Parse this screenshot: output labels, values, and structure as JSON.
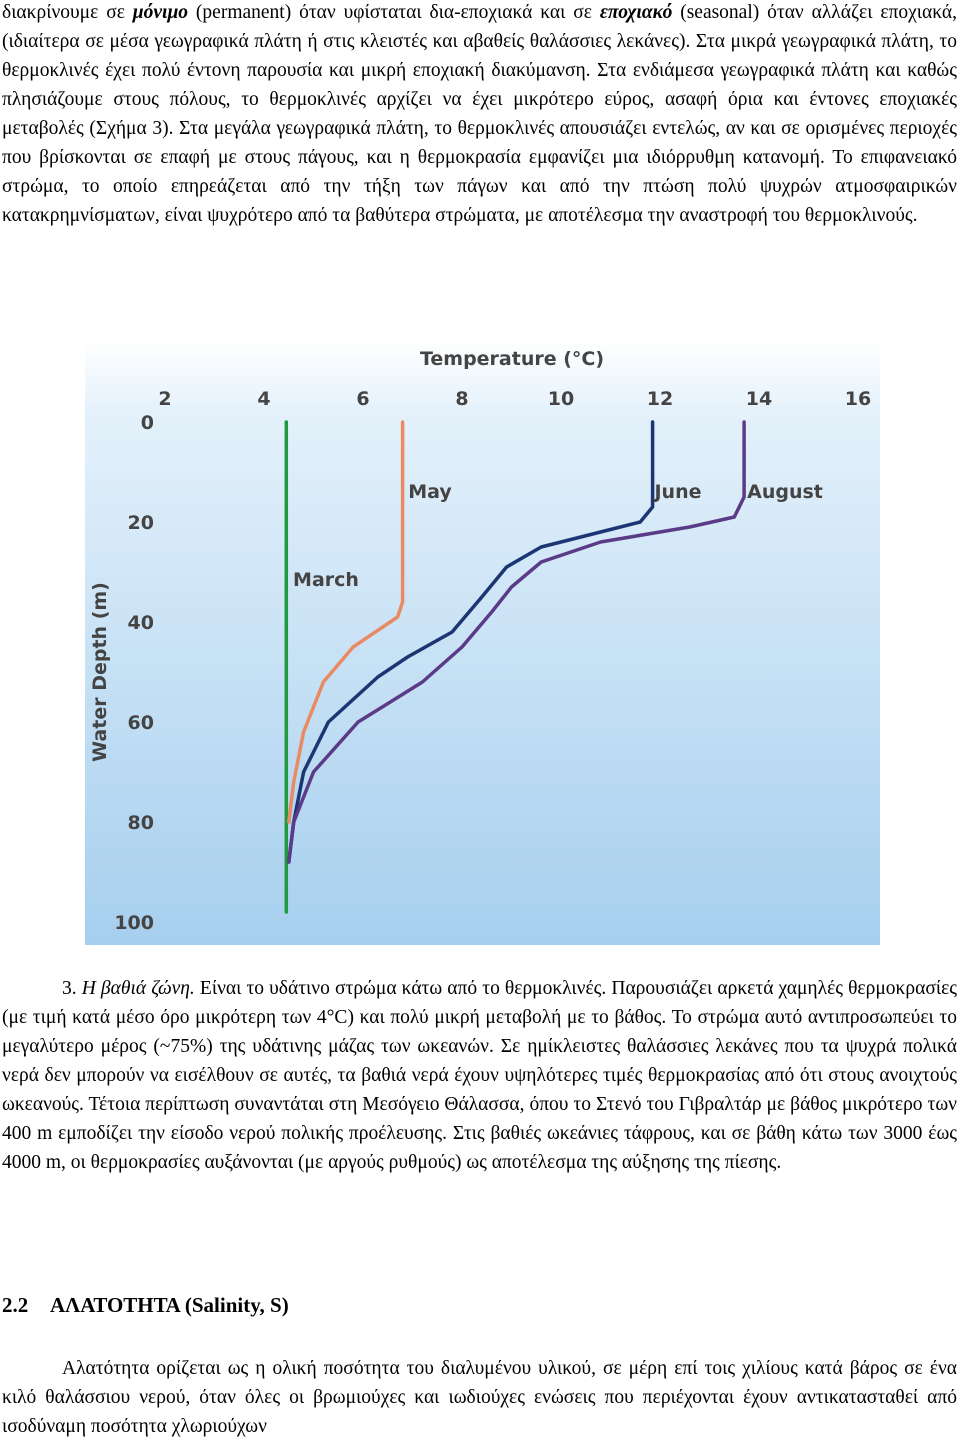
{
  "text_top": {
    "runs": [
      "διακρίνουμε σε ",
      "μόνιμο",
      " (permanent) όταν υφίσταται δια-εποχιακά και σε ",
      "εποχιακό",
      " (seasonal) όταν αλλάζει εποχιακά, (ιδιαίτερα σε μέσα γεωγραφικά πλάτη ή στις κλειστές και αβαθείς θαλάσσιες λεκάνες). Στα μικρά γεωγραφικά πλάτη, το θερμοκλινές έχει πολύ έντονη παρουσία και μικρή εποχιακή διακύμανση. Στα ενδιάμεσα γεωγραφικά πλάτη και καθώς πλησιάζουμε στους πόλους, το θερμοκλινές αρχίζει να έχει μικρότερο εύρος, ασαφή όρια και έντονες εποχιακές μεταβολές (Σχήμα 3). Στα μεγάλα γεωγραφικά πλάτη, το θερμοκλινές απουσιάζει εντελώς, αν και σε ορισμένες περιοχές που βρίσκονται σε επαφή με στους πάγους, και η θερμοκρασία εμφανίζει μια ιδιόρρυθμη κατανομή. Το επιφανειακό στρώμα, το οποίο επηρεάζεται από την τήξη των πάγων και από την πτώση πολύ ψυχρών ατμοσφαιρικών κατακρημνίσματων, είναι ψυχρότερο από τα βαθύτερα στρώματα, με αποτέλεσμα την αναστροφή του θερμοκλινούς."
    ]
  },
  "chart_data": {
    "type": "line",
    "title": "Temperature (°C)",
    "y_label": "Water Depth (m)",
    "xlim": [
      2,
      16
    ],
    "ylim": [
      0,
      100
    ],
    "y_inverted": true,
    "x_axis_position": "top",
    "xticks": [
      2,
      4,
      6,
      8,
      10,
      12,
      14,
      16
    ],
    "yticks": [
      0,
      20,
      40,
      60,
      80,
      100
    ],
    "series": [
      {
        "name": "March",
        "color": "#1f9a3e",
        "x": [
          4.45,
          4.45,
          4.45,
          4.45
        ],
        "values": [
          0,
          40,
          80,
          98
        ]
      },
      {
        "name": "May",
        "color": "#e98a62",
        "x": [
          6.8,
          6.8,
          6.7,
          6.4,
          5.8,
          5.2,
          4.8,
          4.6,
          4.5
        ],
        "values": [
          0,
          36,
          39,
          41,
          45,
          52,
          62,
          72,
          80
        ]
      },
      {
        "name": "June",
        "color": "#1c3673",
        "x": [
          11.85,
          11.85,
          11.6,
          10.8,
          9.6,
          8.9,
          8.4,
          7.8,
          6.9,
          6.3,
          5.3,
          4.8,
          4.6,
          4.5
        ],
        "values": [
          0,
          17,
          20,
          22,
          25,
          29,
          35,
          42,
          47,
          51,
          60,
          70,
          80,
          88
        ]
      },
      {
        "name": "August",
        "color": "#5b3b88",
        "x": [
          13.7,
          13.7,
          13.5,
          12.6,
          10.8,
          9.6,
          9.0,
          8.6,
          8.0,
          7.2,
          5.9,
          5.0,
          4.6,
          4.5
        ],
        "values": [
          0,
          15,
          19,
          21,
          24,
          28,
          33,
          38,
          45,
          52,
          60,
          70,
          80,
          88
        ]
      }
    ]
  },
  "text_bottom": {
    "runs": [
      "3. ",
      "Η βαθιά ζώνη.",
      " Είναι το υδάτινο στρώμα κάτω από το θερμοκλινές. Παρουσιάζει αρκετά χαμηλές θερμοκρασίες (με τιμή κατά μέσο όρο μικρότερη των 4°C) και πολύ μικρή μεταβολή με το βάθος. Το στρώμα αυτό αντιπροσωπεύει το μεγαλύτερο μέρος (~75%) της υδάτινης μάζας των ωκεανών. Σε ημίκλειστες θαλάσσιες λεκάνες που τα ψυχρά πολικά νερά δεν μπορούν να εισέλθουν σε αυτές, τα βαθιά νερά έχουν υψηλότερες τιμές θερμοκρασίας από ότι στους ανοιχτούς ωκεανούς. Τέτοια περίπτωση συναντάται στη Μεσόγειο Θάλασσα, όπου το Στενό του Γιβραλτάρ με βάθος μικρότερο των 400 m εμποδίζει την είσοδο νερού πολικής προέλευσης. Στις βαθιές ωκεάνιες τάφρους, και σε βάθη κάτω των 3000 έως 4000 m, οι θερμοκρασίες αυξάνονται (με αργούς ρυθμούς) ως αποτέλεσμα της αύξησης της πίεσης."
    ]
  },
  "heading": {
    "number": "2.2",
    "title": "ΑΛΑΤΟΤΗΤΑ (Salinity, S)"
  },
  "paragraph_last": "Αλατότητα ορίζεται ως η ολική ποσότητα του διαλυμένου υλικού, σε μέρη επί τοις χιλίους κατά βάρος σε ένα κιλό θαλάσσιου νερού, όταν όλες οι βρωμιούχες και ιωδιούχες ενώσεις που περιέχονται έχουν αντικατασταθεί από ισοδύναμη ποσότητα χλωριούχων"
}
